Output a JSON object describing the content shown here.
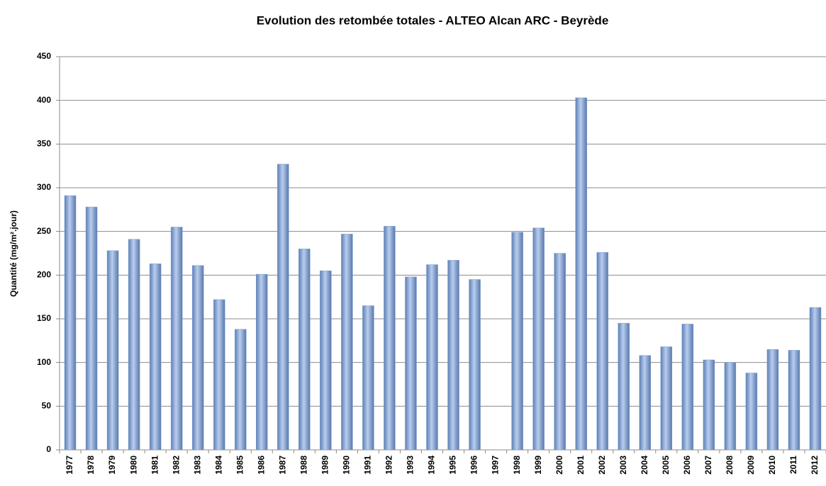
{
  "chart_data": {
    "type": "bar",
    "title": "Evolution des retombée totales - ALTEO Alcan ARC - Beyrède",
    "y_label": "Quantité (mg/m².jour)",
    "categories": [
      "1977",
      "1978",
      "1979",
      "1980",
      "1981",
      "1982",
      "1983",
      "1984",
      "1985",
      "1986",
      "1987",
      "1988",
      "1989",
      "1990",
      "1991",
      "1992",
      "1993",
      "1994",
      "1995",
      "1996",
      "1997",
      "1998",
      "1999",
      "2000",
      "2001",
      "2002",
      "2003",
      "2004",
      "2005",
      "2006",
      "2007",
      "2008",
      "2009",
      "2010",
      "2011",
      "2012"
    ],
    "values": [
      291,
      278,
      228,
      241,
      213,
      255,
      211,
      172,
      138,
      201,
      327,
      230,
      205,
      247,
      165,
      256,
      198,
      212,
      217,
      195,
      null,
      249,
      254,
      225,
      403,
      226,
      145,
      108,
      118,
      144,
      103,
      100,
      88,
      115,
      114,
      163
    ],
    "color": "#7f9fd0",
    "ylim": [
      0,
      450
    ],
    "yticks": [
      0,
      50,
      100,
      150,
      200,
      250,
      300,
      350,
      400,
      450
    ],
    "grid": true
  }
}
